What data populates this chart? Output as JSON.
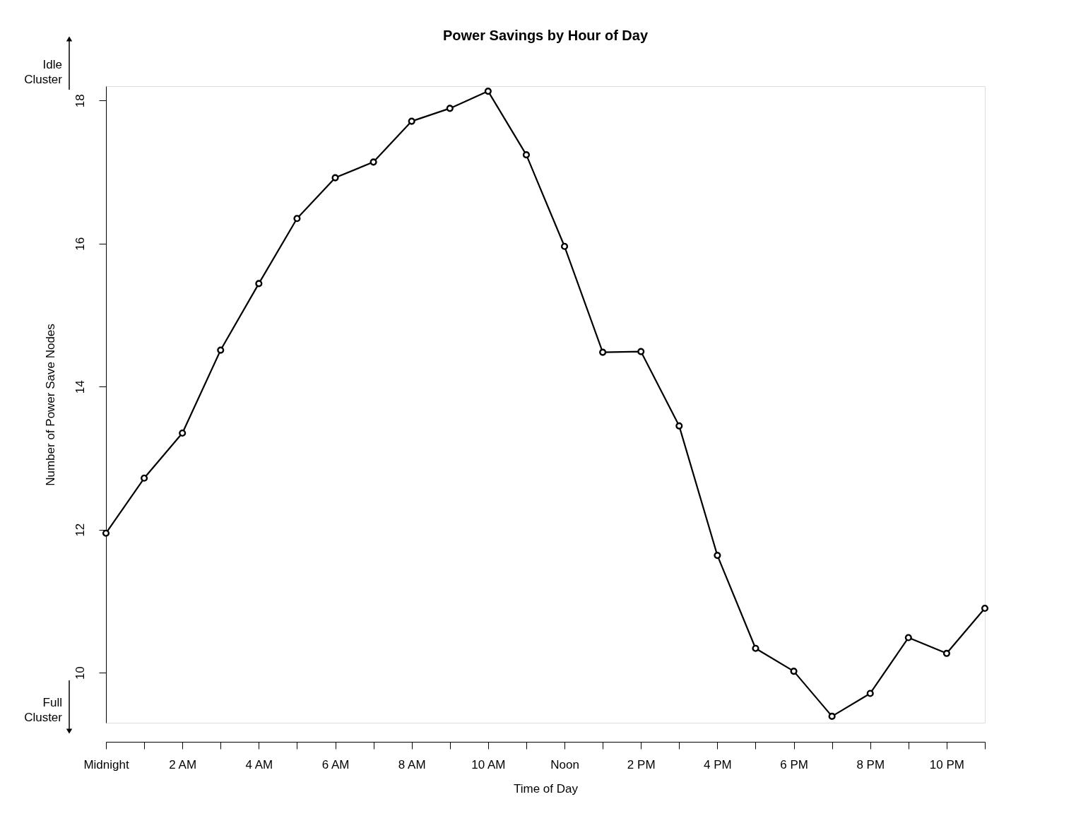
{
  "chart_data": {
    "type": "line",
    "title": "Power Savings by Hour of Day",
    "xlabel": "Time of Day",
    "ylabel": "Number of Power Save Nodes",
    "categories": [
      "Midnight",
      null,
      "2 AM",
      null,
      "4 AM",
      null,
      "6 AM",
      null,
      "8 AM",
      null,
      "10 AM",
      null,
      "Noon",
      null,
      "2 PM",
      null,
      "4 PM",
      null,
      "6 PM",
      null,
      "8 PM",
      null,
      "10 PM",
      null
    ],
    "values": [
      11.95,
      12.72,
      13.35,
      14.51,
      15.44,
      16.35,
      16.92,
      17.14,
      17.71,
      17.89,
      18.13,
      17.24,
      15.96,
      14.48,
      14.49,
      13.45,
      11.64,
      10.34,
      10.02,
      9.39,
      9.71,
      10.49,
      10.27,
      10.9
    ],
    "color": "#000000",
    "marker": "circle",
    "line_style": "solid",
    "ylim": [
      9.3,
      18.2
    ],
    "yticks": [
      10,
      12,
      14,
      16,
      18
    ],
    "annotations": [
      "Idle Cluster",
      "Full Cluster"
    ]
  }
}
